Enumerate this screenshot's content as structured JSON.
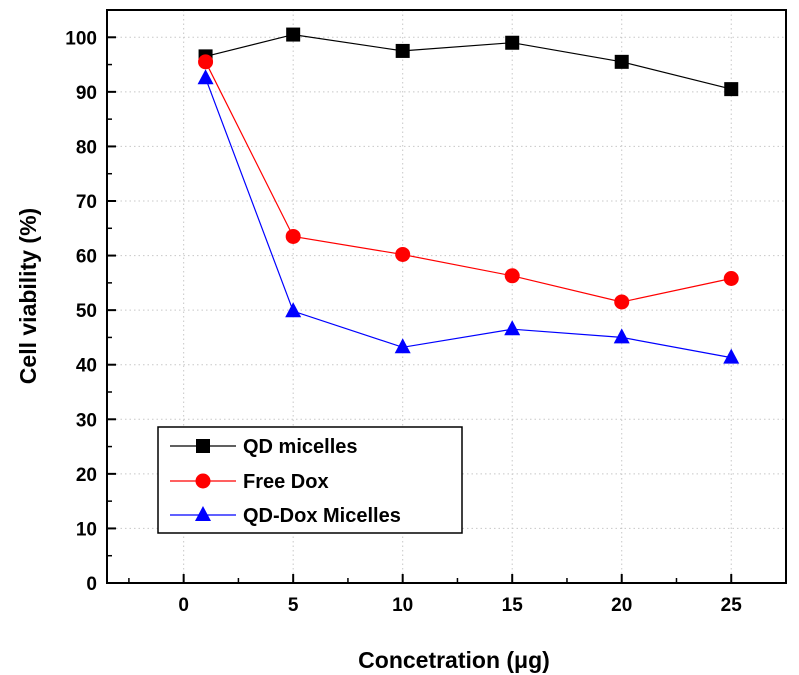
{
  "chart_data": {
    "type": "line",
    "title": "",
    "xlabel": "Concetration (μg)",
    "ylabel": "Cell viability (%)",
    "xlim": [
      -3.5,
      27.5
    ],
    "ylim": [
      0,
      105
    ],
    "xticks": [
      0,
      5,
      10,
      15,
      20,
      25
    ],
    "yticks": [
      0,
      10,
      20,
      30,
      40,
      50,
      60,
      70,
      80,
      90,
      100
    ],
    "grid": true,
    "legend_position": "bottom-left",
    "series": [
      {
        "name": "QD micelles",
        "color": "#000000",
        "marker": "square",
        "x": [
          1,
          5,
          10,
          15,
          20,
          25
        ],
        "y": [
          96.5,
          100.5,
          97.5,
          99,
          95.5,
          90.5
        ]
      },
      {
        "name": "Free Dox",
        "color": "#ff0000",
        "marker": "circle",
        "x": [
          1,
          5,
          10,
          15,
          20,
          25
        ],
        "y": [
          95.5,
          63.5,
          60.2,
          56.3,
          51.5,
          55.8
        ]
      },
      {
        "name": "QD-Dox Micelles",
        "color": "#0000ff",
        "marker": "triangle",
        "x": [
          1,
          5,
          10,
          15,
          20,
          25
        ],
        "y": [
          92.5,
          49.8,
          43.2,
          46.5,
          45,
          41.3
        ]
      }
    ]
  }
}
